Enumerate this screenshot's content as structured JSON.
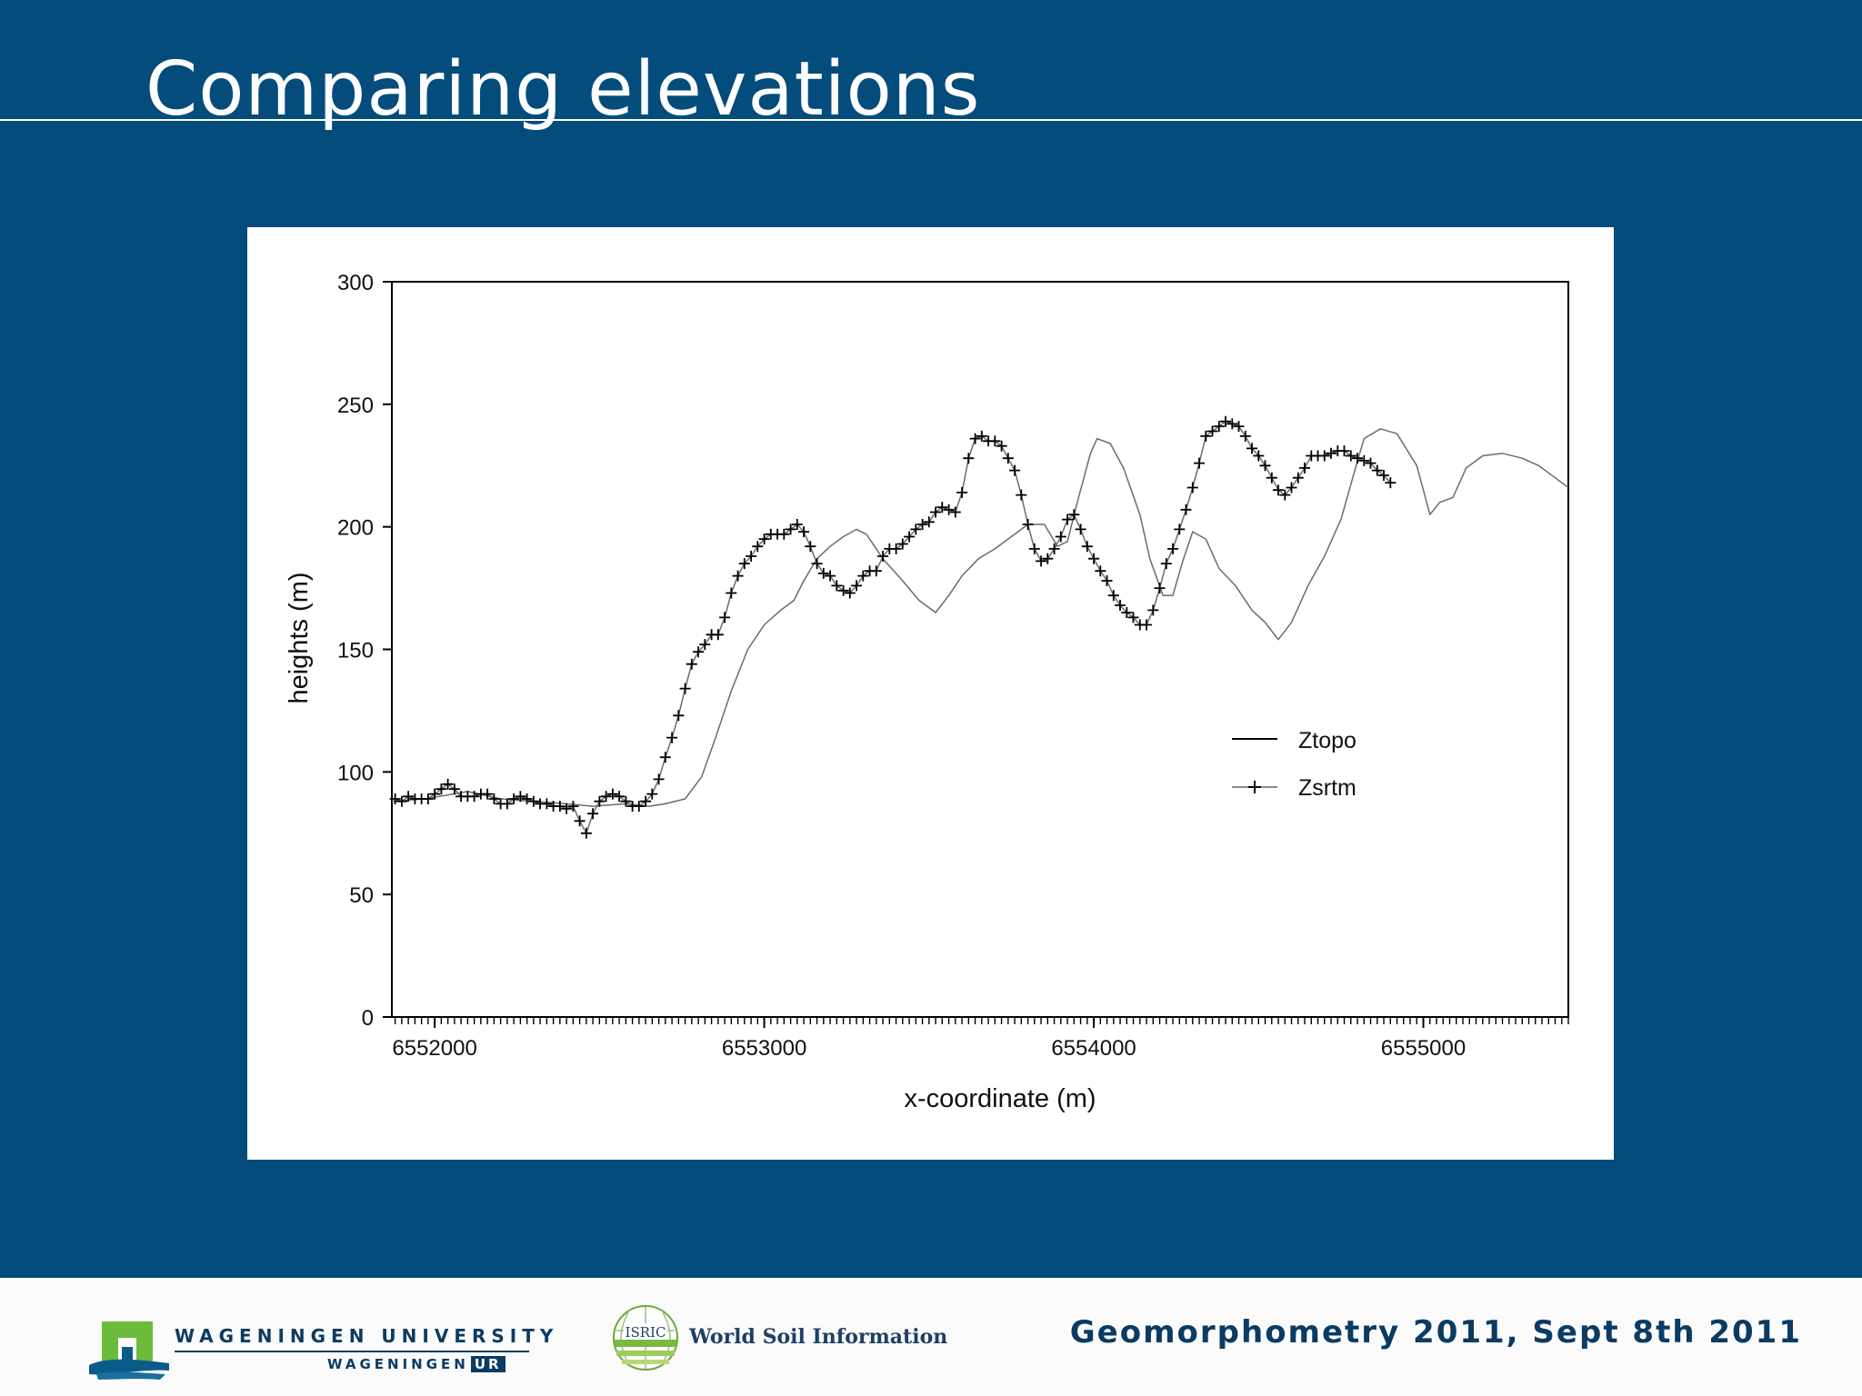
{
  "slide": {
    "title": "Comparing elevations"
  },
  "footer": {
    "university_name": "WAGENINGEN UNIVERSITY",
    "university_sub": "WAGENINGEN",
    "university_sub_badge": "UR",
    "isric_badge": "ISRIC",
    "isric_label": "World Soil Information",
    "event": "Geomorphometry 2011, Sept 8th 2011"
  },
  "colors": {
    "background": "#034c7c",
    "panel": "#ffffff",
    "series_line": "#6b6b6b",
    "axis": "#000000",
    "footer_text": "#0b3b62"
  },
  "chart_data": {
    "type": "line",
    "title": "",
    "xlabel": "x-coordinate (m)",
    "ylabel": "heights (m)",
    "xlim": [
      6551870,
      6555440
    ],
    "ylim": [
      0,
      300
    ],
    "x_ticks": [
      6552000,
      6553000,
      6554000,
      6555000
    ],
    "x_tick_labels": [
      "6552000",
      "6553000",
      "6554000",
      "6555000"
    ],
    "y_ticks": [
      0,
      50,
      100,
      150,
      200,
      250,
      300
    ],
    "y_tick_labels": [
      "0",
      "50",
      "100",
      "150",
      "200",
      "250",
      "300"
    ],
    "grid": false,
    "legend": {
      "position": "center-right",
      "entries": [
        "Ztopo",
        "Zsrtm"
      ]
    },
    "series": [
      {
        "name": "Ztopo",
        "marker": "none",
        "points": [
          [
            6551870,
            88
          ],
          [
            6551970,
            89
          ],
          [
            6552100,
            92
          ],
          [
            6552200,
            89
          ],
          [
            6552300,
            88
          ],
          [
            6552400,
            87
          ],
          [
            6552480,
            86
          ],
          [
            6552580,
            87
          ],
          [
            6552650,
            86
          ],
          [
            6552700,
            87
          ],
          [
            6552760,
            89
          ],
          [
            6552810,
            98
          ],
          [
            6552850,
            113
          ],
          [
            6552900,
            133
          ],
          [
            6552950,
            150
          ],
          [
            6553000,
            160
          ],
          [
            6553050,
            166
          ],
          [
            6553090,
            170
          ],
          [
            6553120,
            178
          ],
          [
            6553160,
            187
          ],
          [
            6553200,
            192
          ],
          [
            6553240,
            196
          ],
          [
            6553280,
            199
          ],
          [
            6553310,
            197
          ],
          [
            6553360,
            187
          ],
          [
            6553420,
            178
          ],
          [
            6553470,
            170
          ],
          [
            6553520,
            165
          ],
          [
            6553560,
            172
          ],
          [
            6553600,
            180
          ],
          [
            6553650,
            187
          ],
          [
            6553700,
            191
          ],
          [
            6553750,
            196
          ],
          [
            6553800,
            201
          ],
          [
            6553850,
            201
          ],
          [
            6553890,
            192
          ],
          [
            6553920,
            194
          ],
          [
            6553950,
            210
          ],
          [
            6553990,
            230
          ],
          [
            6554010,
            236
          ],
          [
            6554050,
            234
          ],
          [
            6554090,
            224
          ],
          [
            6554140,
            205
          ],
          [
            6554170,
            187
          ],
          [
            6554210,
            172
          ],
          [
            6554240,
            172
          ],
          [
            6554270,
            186
          ],
          [
            6554300,
            198
          ],
          [
            6554340,
            195
          ],
          [
            6554380,
            183
          ],
          [
            6554430,
            176
          ],
          [
            6554480,
            166
          ],
          [
            6554520,
            161
          ],
          [
            6554560,
            154
          ],
          [
            6554600,
            161
          ],
          [
            6554650,
            176
          ],
          [
            6554700,
            188
          ],
          [
            6554750,
            203
          ],
          [
            6554790,
            222
          ],
          [
            6554820,
            236
          ],
          [
            6554870,
            240
          ],
          [
            6554920,
            238
          ],
          [
            6554980,
            225
          ],
          [
            6555020,
            205
          ],
          [
            6555050,
            210
          ],
          [
            6555090,
            212
          ],
          [
            6555130,
            224
          ],
          [
            6555180,
            229
          ],
          [
            6555240,
            230
          ],
          [
            6555300,
            228
          ],
          [
            6555350,
            225
          ],
          [
            6555400,
            220
          ],
          [
            6555440,
            216
          ]
        ]
      },
      {
        "name": "Zsrtm",
        "marker": "+",
        "points": [
          [
            6551880,
            89
          ],
          [
            6551900,
            88
          ],
          [
            6551920,
            90
          ],
          [
            6551940,
            89
          ],
          [
            6551960,
            89
          ],
          [
            6551980,
            89
          ],
          [
            6552000,
            91
          ],
          [
            6552020,
            93
          ],
          [
            6552040,
            95
          ],
          [
            6552060,
            93
          ],
          [
            6552080,
            90
          ],
          [
            6552100,
            90
          ],
          [
            6552120,
            90
          ],
          [
            6552140,
            91
          ],
          [
            6552160,
            91
          ],
          [
            6552180,
            89
          ],
          [
            6552200,
            87
          ],
          [
            6552220,
            87
          ],
          [
            6552240,
            89
          ],
          [
            6552260,
            90
          ],
          [
            6552280,
            89
          ],
          [
            6552300,
            88
          ],
          [
            6552320,
            87
          ],
          [
            6552340,
            87
          ],
          [
            6552360,
            86
          ],
          [
            6552380,
            86
          ],
          [
            6552400,
            85
          ],
          [
            6552420,
            86
          ],
          [
            6552440,
            80
          ],
          [
            6552460,
            75
          ],
          [
            6552480,
            83
          ],
          [
            6552500,
            88
          ],
          [
            6552520,
            90
          ],
          [
            6552540,
            91
          ],
          [
            6552560,
            90
          ],
          [
            6552580,
            88
          ],
          [
            6552600,
            86
          ],
          [
            6552620,
            86
          ],
          [
            6552640,
            88
          ],
          [
            6552660,
            91
          ],
          [
            6552680,
            97
          ],
          [
            6552700,
            106
          ],
          [
            6552720,
            114
          ],
          [
            6552740,
            123
          ],
          [
            6552760,
            134
          ],
          [
            6552780,
            144
          ],
          [
            6552800,
            149
          ],
          [
            6552820,
            152
          ],
          [
            6552840,
            156
          ],
          [
            6552860,
            156
          ],
          [
            6552880,
            163
          ],
          [
            6552900,
            173
          ],
          [
            6552920,
            180
          ],
          [
            6552940,
            185
          ],
          [
            6552960,
            188
          ],
          [
            6552980,
            192
          ],
          [
            6553000,
            195
          ],
          [
            6553020,
            197
          ],
          [
            6553040,
            197
          ],
          [
            6553060,
            197
          ],
          [
            6553080,
            199
          ],
          [
            6553100,
            201
          ],
          [
            6553120,
            198
          ],
          [
            6553140,
            192
          ],
          [
            6553160,
            185
          ],
          [
            6553180,
            181
          ],
          [
            6553200,
            180
          ],
          [
            6553220,
            176
          ],
          [
            6553240,
            174
          ],
          [
            6553260,
            173
          ],
          [
            6553280,
            176
          ],
          [
            6553300,
            180
          ],
          [
            6553320,
            182
          ],
          [
            6553340,
            182
          ],
          [
            6553360,
            188
          ],
          [
            6553380,
            191
          ],
          [
            6553400,
            191
          ],
          [
            6553420,
            193
          ],
          [
            6553440,
            196
          ],
          [
            6553460,
            199
          ],
          [
            6553480,
            201
          ],
          [
            6553500,
            202
          ],
          [
            6553520,
            206
          ],
          [
            6553540,
            208
          ],
          [
            6553560,
            207
          ],
          [
            6553580,
            206
          ],
          [
            6553600,
            214
          ],
          [
            6553620,
            228
          ],
          [
            6553640,
            236
          ],
          [
            6553660,
            237
          ],
          [
            6553680,
            235
          ],
          [
            6553700,
            235
          ],
          [
            6553720,
            233
          ],
          [
            6553740,
            228
          ],
          [
            6553760,
            223
          ],
          [
            6553780,
            213
          ],
          [
            6553800,
            201
          ],
          [
            6553820,
            191
          ],
          [
            6553840,
            186
          ],
          [
            6553860,
            187
          ],
          [
            6553880,
            191
          ],
          [
            6553900,
            196
          ],
          [
            6553920,
            203
          ],
          [
            6553940,
            205
          ],
          [
            6553960,
            199
          ],
          [
            6553980,
            192
          ],
          [
            6554000,
            187
          ],
          [
            6554020,
            182
          ],
          [
            6554040,
            178
          ],
          [
            6554060,
            172
          ],
          [
            6554080,
            168
          ],
          [
            6554100,
            165
          ],
          [
            6554120,
            163
          ],
          [
            6554140,
            160
          ],
          [
            6554160,
            160
          ],
          [
            6554180,
            166
          ],
          [
            6554200,
            175
          ],
          [
            6554220,
            185
          ],
          [
            6554240,
            191
          ],
          [
            6554260,
            199
          ],
          [
            6554280,
            207
          ],
          [
            6554300,
            216
          ],
          [
            6554320,
            226
          ],
          [
            6554340,
            237
          ],
          [
            6554360,
            239
          ],
          [
            6554380,
            241
          ],
          [
            6554400,
            243
          ],
          [
            6554420,
            242
          ],
          [
            6554440,
            241
          ],
          [
            6554460,
            237
          ],
          [
            6554480,
            232
          ],
          [
            6554500,
            229
          ],
          [
            6554520,
            225
          ],
          [
            6554540,
            220
          ],
          [
            6554560,
            215
          ],
          [
            6554580,
            213
          ],
          [
            6554600,
            216
          ],
          [
            6554620,
            220
          ],
          [
            6554640,
            224
          ],
          [
            6554660,
            229
          ],
          [
            6554680,
            229
          ],
          [
            6554700,
            229
          ],
          [
            6554720,
            230
          ],
          [
            6554740,
            231
          ],
          [
            6554760,
            231
          ],
          [
            6554780,
            229
          ],
          [
            6554800,
            228
          ],
          [
            6554820,
            227
          ],
          [
            6554840,
            226
          ],
          [
            6554860,
            223
          ],
          [
            6554880,
            221
          ],
          [
            6554900,
            218
          ]
        ]
      }
    ]
  }
}
